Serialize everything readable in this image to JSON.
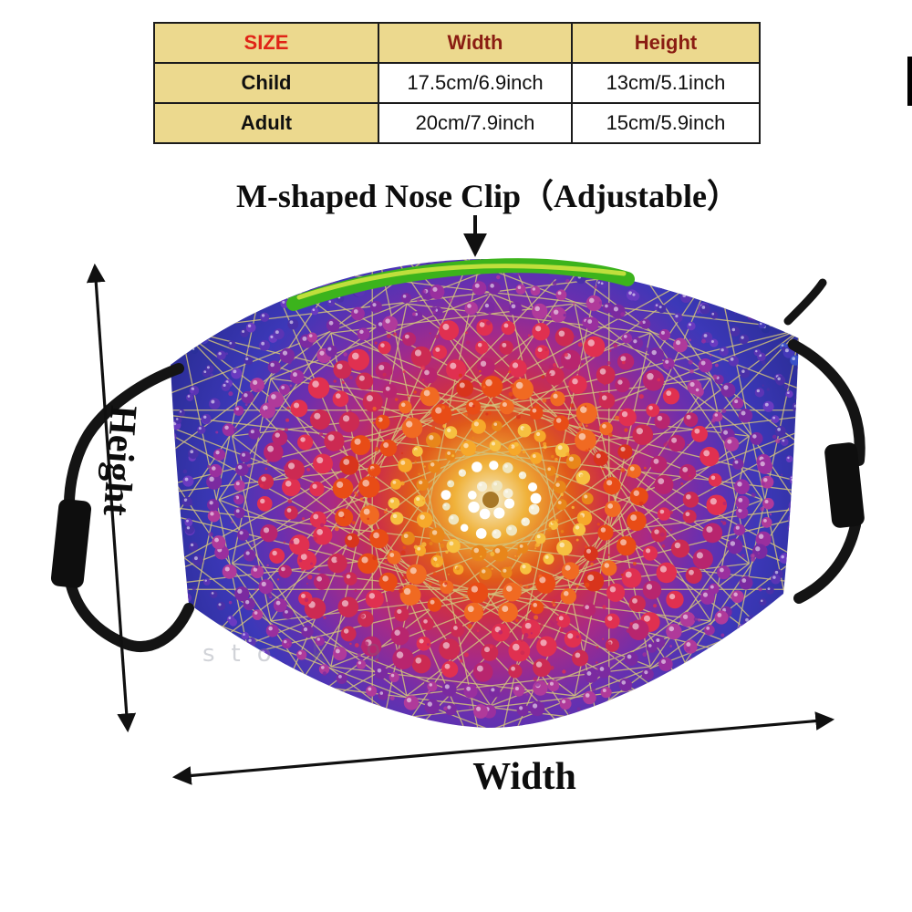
{
  "size_table": {
    "headers": {
      "size": "SIZE",
      "width": "Width",
      "height": "Height"
    },
    "rows": [
      {
        "label": "Child",
        "width": "17.5cm/6.9inch",
        "height": "13cm/5.1inch"
      },
      {
        "label": "Adult",
        "width": "20cm/7.9inch",
        "height": "15cm/5.9inch"
      }
    ]
  },
  "annotations": {
    "nose_clip": "M-shaped Nose Clip（Adjustable）",
    "height": "Height",
    "width": "Width",
    "watermark": "sto k 9"
  },
  "colors": {
    "table_header_bg": "#ecd98e",
    "table_size_text": "#e02417",
    "table_dim_text": "#8a1d12",
    "nose_clip_green": "#3cb31c",
    "nose_clip_highlight": "#c6e23e",
    "strap_black": "#141414",
    "line_gold": "#d2c27c",
    "arrow_black": "#101010",
    "mask_rings": [
      "#f5efd8",
      "#f0b532",
      "#e8791a",
      "#dd3a1c",
      "#c22a66",
      "#9a2f9e",
      "#5d34b6",
      "#3340c0",
      "#2a2e96"
    ]
  },
  "art": {
    "zones": [
      {
        "max": 48,
        "colors": [
          "#f5efd8",
          "#efe6c0",
          "#ffffff"
        ]
      },
      {
        "max": 95,
        "colors": [
          "#f6a82a",
          "#e8861a",
          "#f6c040"
        ]
      },
      {
        "max": 150,
        "colors": [
          "#e84c16",
          "#d8341c",
          "#f06a22"
        ]
      },
      {
        "max": 212,
        "colors": [
          "#cc2a52",
          "#b8256e",
          "#e03050"
        ]
      },
      {
        "max": 268,
        "colors": [
          "#9a2f9e",
          "#7b2aa0",
          "#b03a9a"
        ]
      },
      {
        "max": 322,
        "colors": [
          "#5b34b4",
          "#6a3ac0",
          "#4a30a8"
        ]
      },
      {
        "max": 9999,
        "colors": [
          "#3340c0",
          "#2a2f9a",
          "#4438b8",
          "#5a2ea6",
          "#3a50c8"
        ]
      }
    ]
  }
}
